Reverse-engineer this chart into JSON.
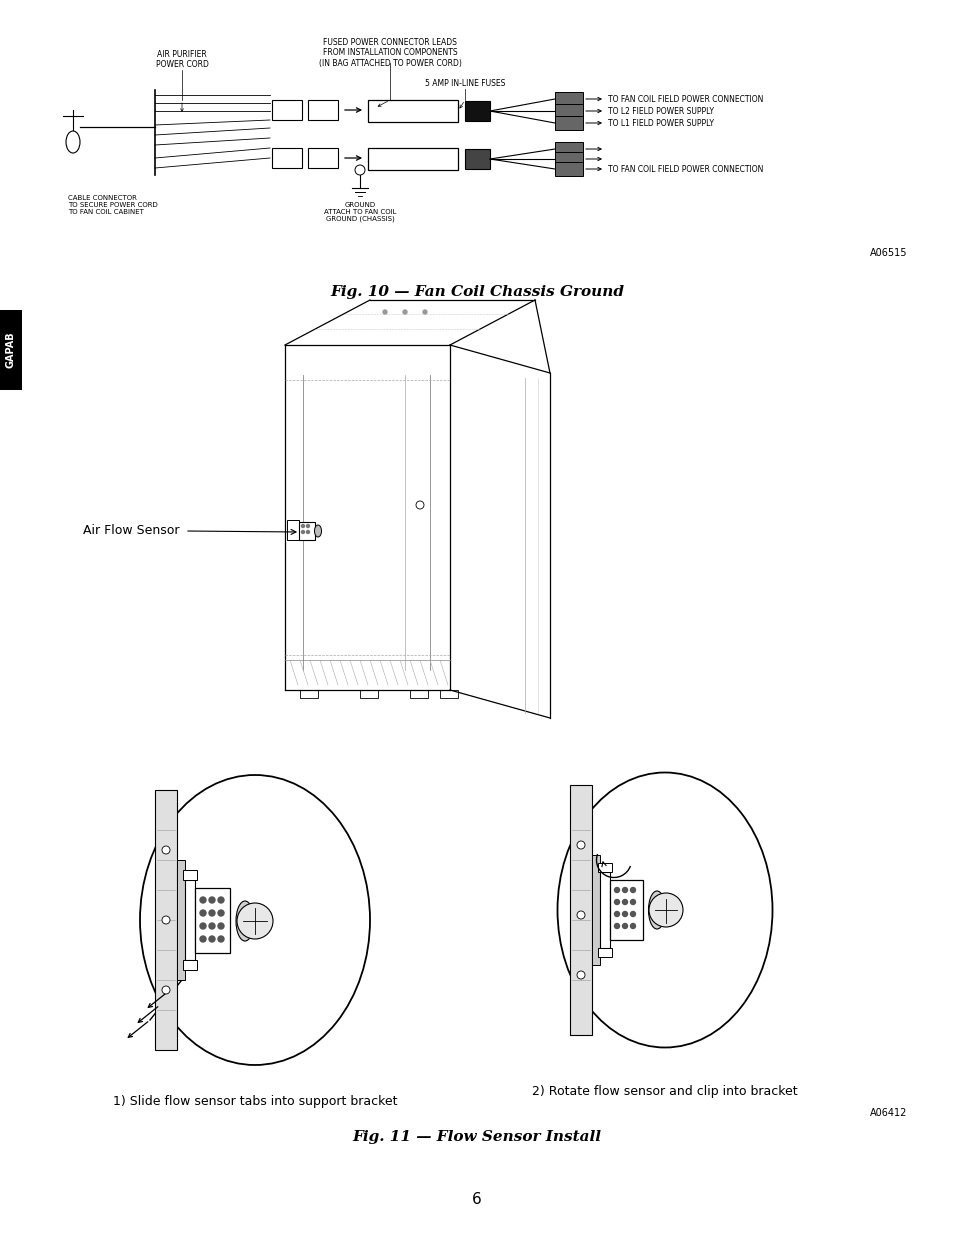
{
  "background_color": "#ffffff",
  "page_number": "6",
  "gapab_label": "GAPAB",
  "fig10_caption": "Fig. 10 — Fan Coil Chassis Ground",
  "fig11_caption": "Fig. 11 — Flow Sensor Install",
  "a06515_label": "A06515",
  "a06412_label": "A06412",
  "label1_text": "1) Slide flow sensor tabs into support bracket",
  "label2_text": "2) Rotate flow sensor and clip into bracket",
  "wiring_labels": {
    "air_purifier": "AIR PURIFIER\nPOWER CORD",
    "fused_leads": "FUSED POWER CONNECTOR LEADS\nFROM INSTALLATION COMPONENTS\n(IN BAG ATTACHED TO POWER CORD)",
    "fuses": "5 AMP IN-LINE FUSES",
    "ground": "GROUND\nATTACH TO FAN COIL\nGROUND (CHASSIS)",
    "cable_conn": "CABLE CONNECTOR\nTO SECURE POWER CORD\nTO FAN COIL CABINET",
    "right1": "TO FAN COIL FIELD POWER CONNECTION",
    "right2": "TO L2 FIELD POWER SUPPLY",
    "right3": "TO L1 FIELD POWER SUPPLY",
    "right4": "TO FAN COIL FIELD POWER CONNECTION"
  },
  "airflowsensor_label": "Air Flow Sensor"
}
